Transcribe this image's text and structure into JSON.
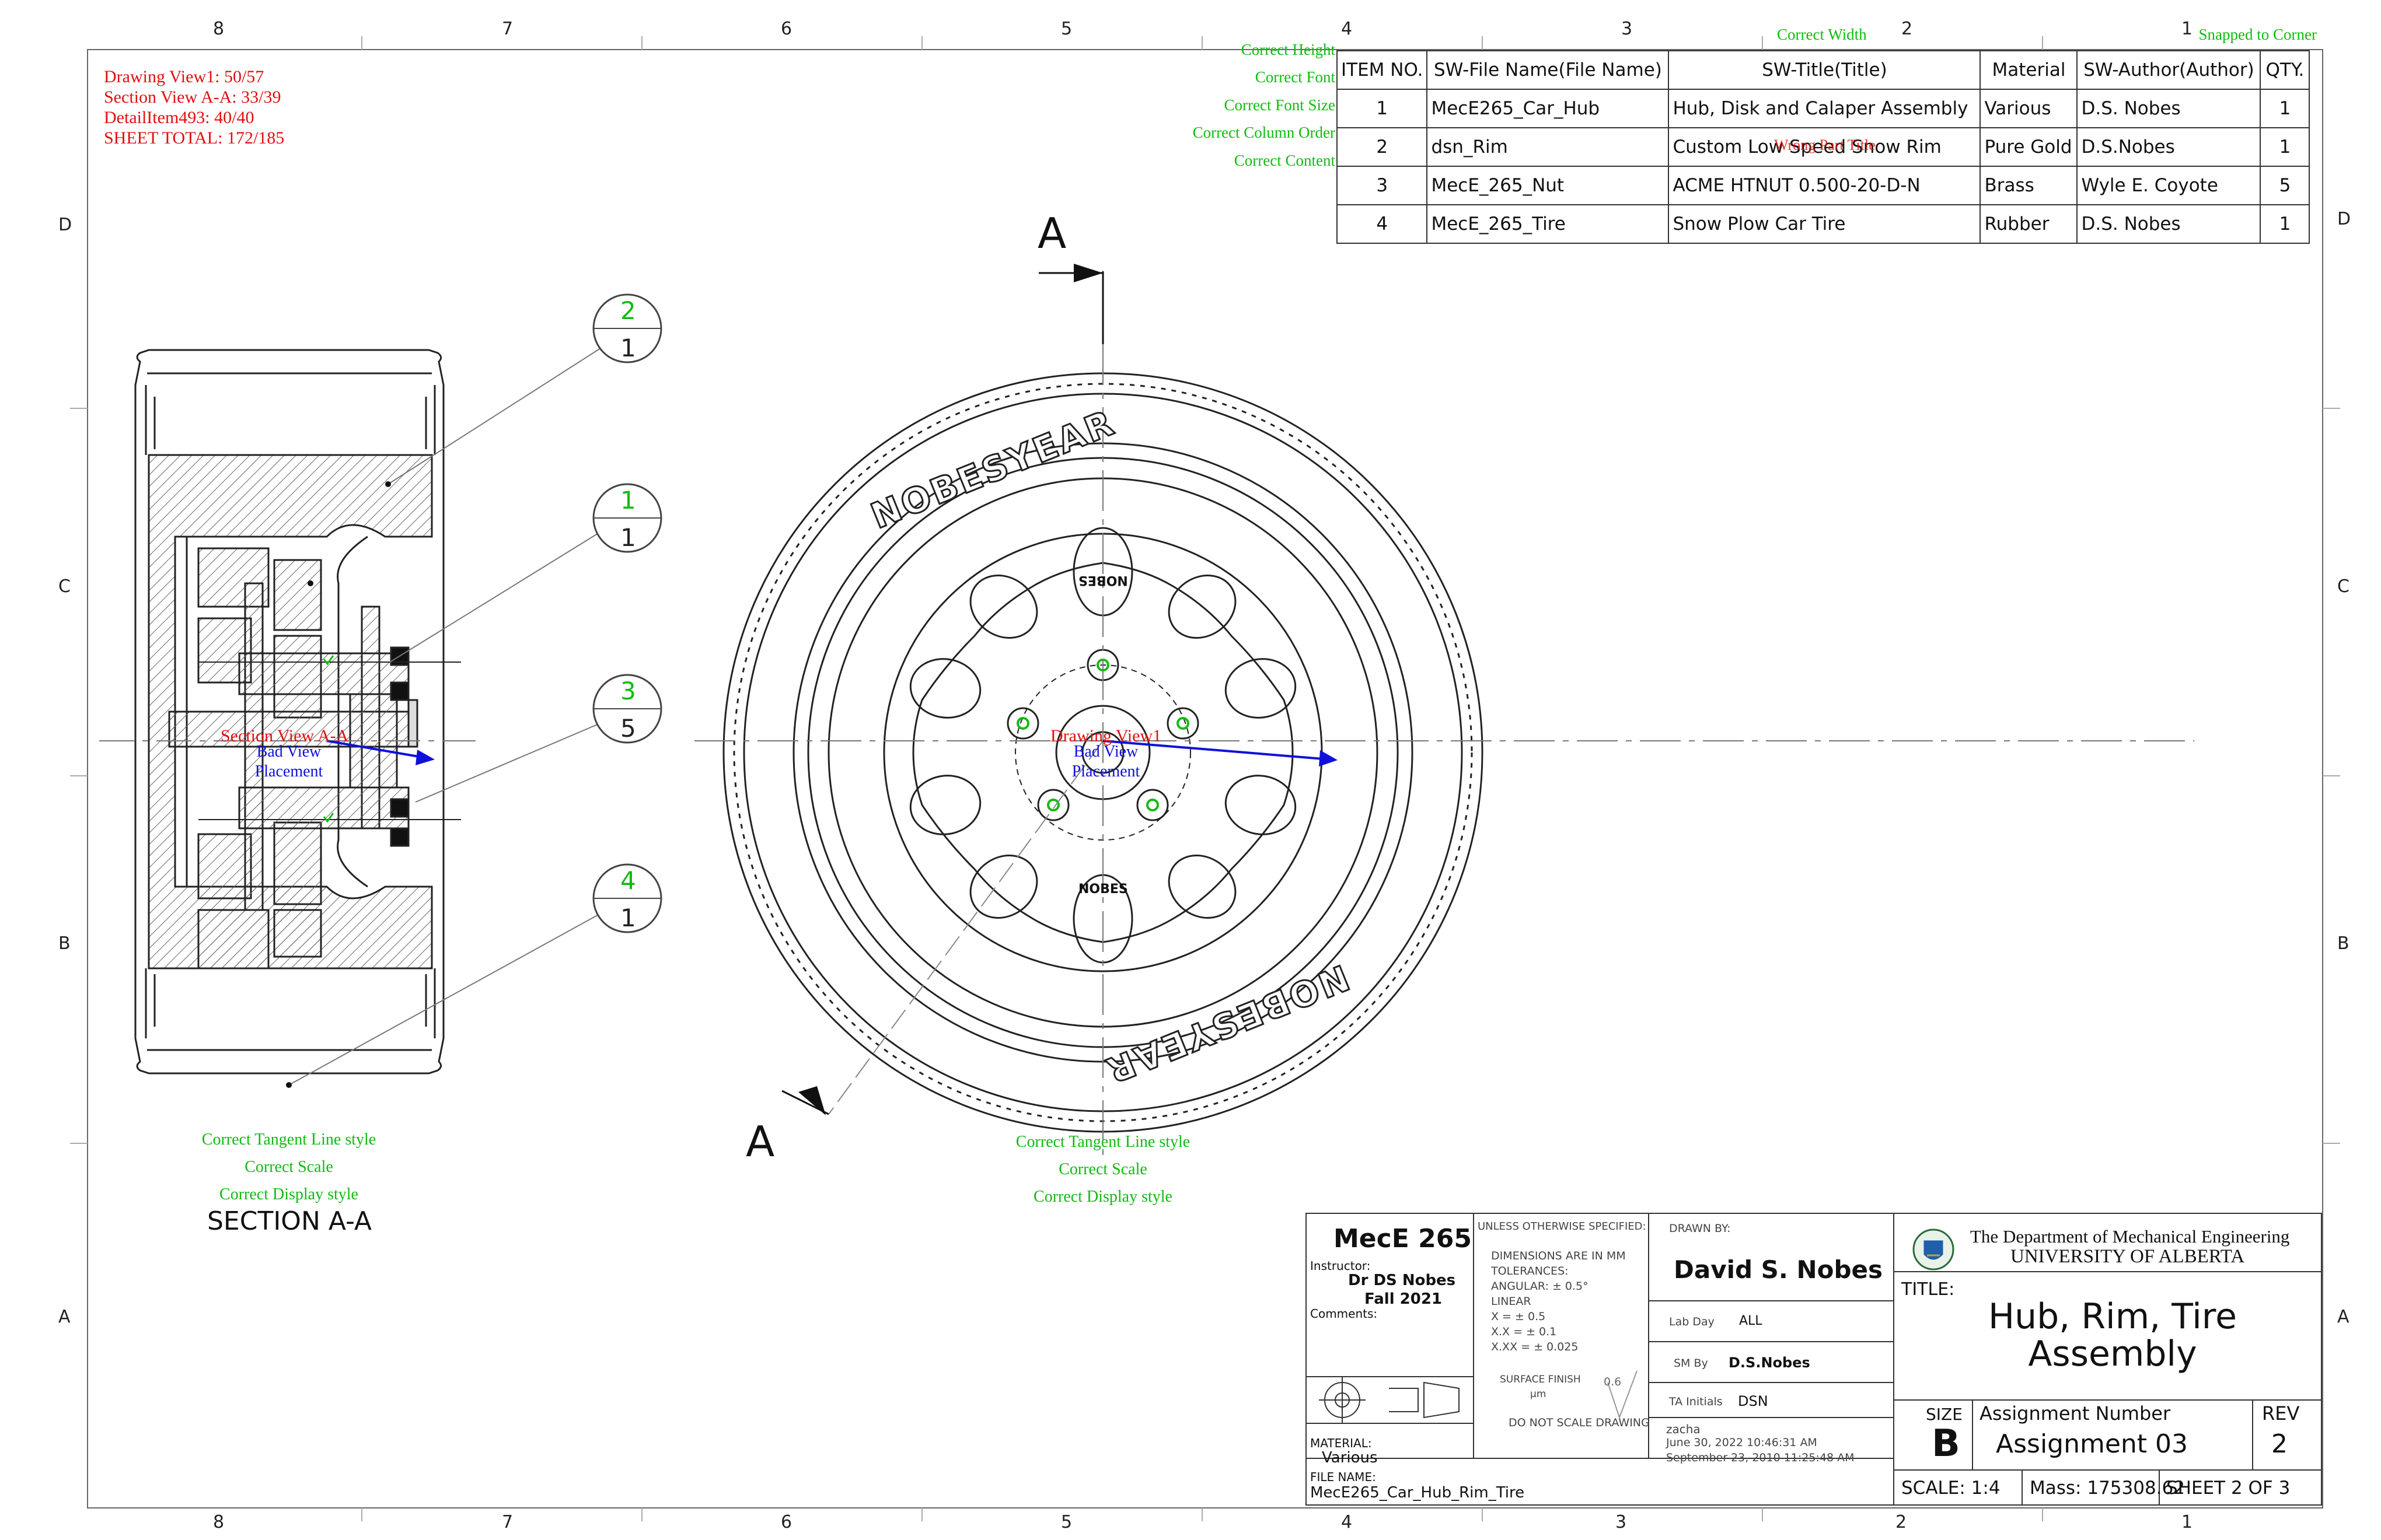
{
  "zones": {
    "top": [
      "8",
      "7",
      "6",
      "5",
      "4",
      "3",
      "2",
      "1"
    ],
    "bottom": [
      "8",
      "7",
      "6",
      "5",
      "4",
      "3",
      "2",
      "1"
    ],
    "side": [
      "D",
      "C",
      "B",
      "A"
    ]
  },
  "check_status": {
    "drawing_view": "Drawing View1: 50/57",
    "section_view": "Section View A-A: 33/39",
    "detail_item": "DetailItem493: 40/40",
    "sheet_total": "SHEET TOTAL: 172/185"
  },
  "bom_checks": {
    "height": "Correct Height",
    "font": "Correct Font",
    "font_size": "Correct Font Size",
    "column_order": "Correct Column Order",
    "content": "Correct Content",
    "width": "Correct Width",
    "snapped": "Snapped to Corner",
    "overlay": "Wrong Part Title"
  },
  "bom": {
    "headers": [
      "ITEM NO.",
      "SW-File Name(File Name)",
      "SW-Title(Title)",
      "Material",
      "SW-Author(Author)",
      "QTY."
    ],
    "rows": [
      [
        "1",
        "MecE265_Car_Hub",
        "Hub, Disk and Calaper Assembly",
        "Various",
        "D.S. Nobes",
        "1"
      ],
      [
        "2",
        "dsn_Rim",
        "Custom Low Speed Snow Rim",
        "Pure Gold",
        "D.S.Nobes",
        "1"
      ],
      [
        "3",
        "MecE_265_Nut",
        "ACME HTNUT 0.500-20-D-N",
        "Brass",
        "Wyle E. Coyote",
        "5"
      ],
      [
        "4",
        "MecE_265_Tire",
        "Snow Plow Car Tire",
        "Rubber",
        "D.S. Nobes",
        "1"
      ]
    ]
  },
  "balloons": [
    {
      "item": "2",
      "qty": "1"
    },
    {
      "item": "1",
      "qty": "1"
    },
    {
      "item": "3",
      "qty": "5"
    },
    {
      "item": "4",
      "qty": "1"
    }
  ],
  "section": {
    "label_top": "A",
    "label_bottom": "A",
    "caption": "SECTION A-A",
    "view_label": "Section View A-A",
    "bad_placement": "Bad View Placement",
    "checks": [
      "Correct Tangent Line style",
      "Correct Scale",
      "Correct Display style"
    ]
  },
  "front": {
    "view_label": "Drawing View1",
    "bad_placement": "Bad View Placement",
    "brand": "NOBESYEAR",
    "cap_text": "NOBES",
    "checks": [
      "Correct Tangent Line style",
      "Correct Scale",
      "Correct Display style"
    ]
  },
  "title_block": {
    "course": "MecE 265",
    "instructor_label": "Instructor:",
    "instructor": "Dr DS Nobes",
    "term": "Fall 2021",
    "comments_label": "Comments:",
    "unless": "UNLESS OTHERWISE SPECIFIED:",
    "dim_lines": [
      "DIMENSIONS ARE IN MM",
      "TOLERANCES:",
      "ANGULAR: ± 0.5°",
      "LINEAR",
      "X      = ± 0.5",
      "X.X    = ± 0.1",
      "X.XX  = ± 0.025"
    ],
    "surface_finish": "SURFACE FINISH",
    "surface_unit": "μm",
    "surface_value": "0.6",
    "do_not_scale": "DO NOT SCALE DRAWING",
    "drawn_by_label": "DRAWN BY:",
    "drawn_by": "David S. Nobes",
    "lab_day_label": "Lab Day",
    "lab_day": "ALL",
    "sm_by_label": "SM By",
    "sm_by": "D.S.Nobes",
    "ta_label": "TA Initials",
    "ta": "DSN",
    "user": "zacha",
    "date1": "June 30, 2022 10:46:31 AM",
    "date2": "September 23, 2010 11:25:48 AM",
    "material_label": "MATERIAL:",
    "material": "Various",
    "file_label": "FILE NAME:",
    "file": "MecE265_Car_Hub_Rim_Tire",
    "dept": "The Department of Mechanical Engineering",
    "univ": "UNIVERSITY OF ALBERTA",
    "title_label": "TITLE:",
    "title_line1": "Hub, Rim, Tire",
    "title_line2": "Assembly",
    "size_label": "SIZE",
    "size": "B",
    "assign_label": "Assignment  Number",
    "assign": "Assignment 03",
    "rev_label": "REV",
    "rev": "2",
    "scale": "SCALE: 1:4",
    "mass": "Mass: 175308.62",
    "sheet": "SHEET 2 OF 3"
  },
  "colors": {
    "annotation": "#e01010",
    "check": "#11bb11",
    "note": "#1010dd",
    "line": "#222222"
  }
}
